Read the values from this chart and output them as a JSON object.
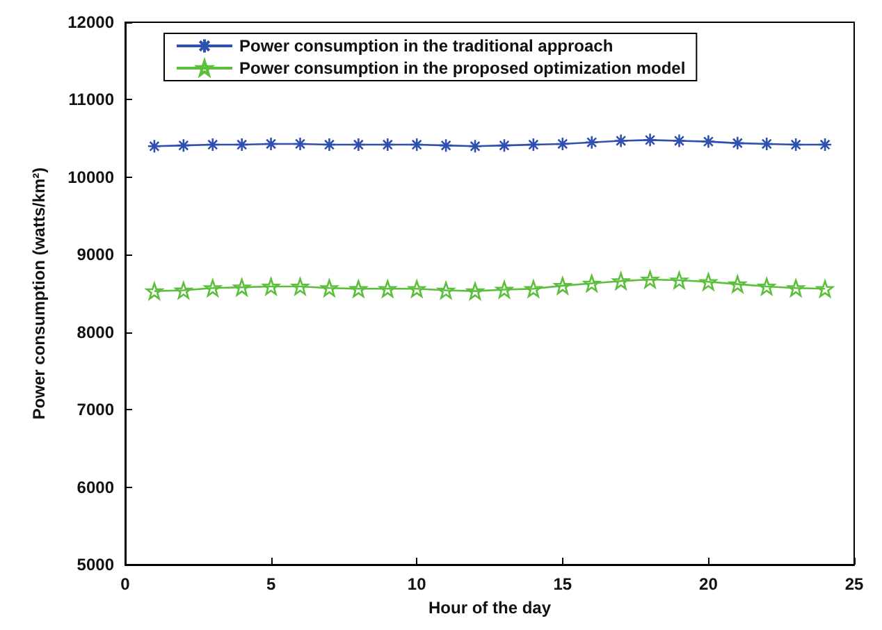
{
  "chart_data": {
    "type": "line",
    "xlabel": "Hour of the day",
    "ylabel": "Power consumption (watts/km²)",
    "x": [
      1,
      2,
      3,
      4,
      5,
      6,
      7,
      8,
      9,
      10,
      11,
      12,
      13,
      14,
      15,
      16,
      17,
      18,
      19,
      20,
      21,
      22,
      23,
      24
    ],
    "series": [
      {
        "name": "Power consumption in the traditional approach",
        "color": "#3050b0",
        "marker": "cross",
        "values": [
          10400,
          10410,
          10420,
          10420,
          10430,
          10430,
          10420,
          10420,
          10420,
          10420,
          10410,
          10400,
          10410,
          10420,
          10430,
          10450,
          10470,
          10480,
          10470,
          10460,
          10440,
          10430,
          10420,
          10420
        ]
      },
      {
        "name": "Power consumption in the proposed optimization model",
        "color": "#5cbf3c",
        "marker": "star",
        "values": [
          8530,
          8540,
          8570,
          8580,
          8590,
          8590,
          8570,
          8560,
          8560,
          8560,
          8540,
          8530,
          8550,
          8560,
          8600,
          8630,
          8660,
          8680,
          8670,
          8650,
          8620,
          8590,
          8570,
          8560
        ]
      }
    ],
    "xlim": [
      0,
      25
    ],
    "xticks": [
      0,
      5,
      10,
      15,
      20,
      25
    ],
    "ylim": [
      5000,
      12000
    ],
    "yticks": [
      5000,
      6000,
      7000,
      8000,
      9000,
      10000,
      11000,
      12000
    ],
    "grid": false,
    "legend": "top",
    "line_style": "solid"
  }
}
